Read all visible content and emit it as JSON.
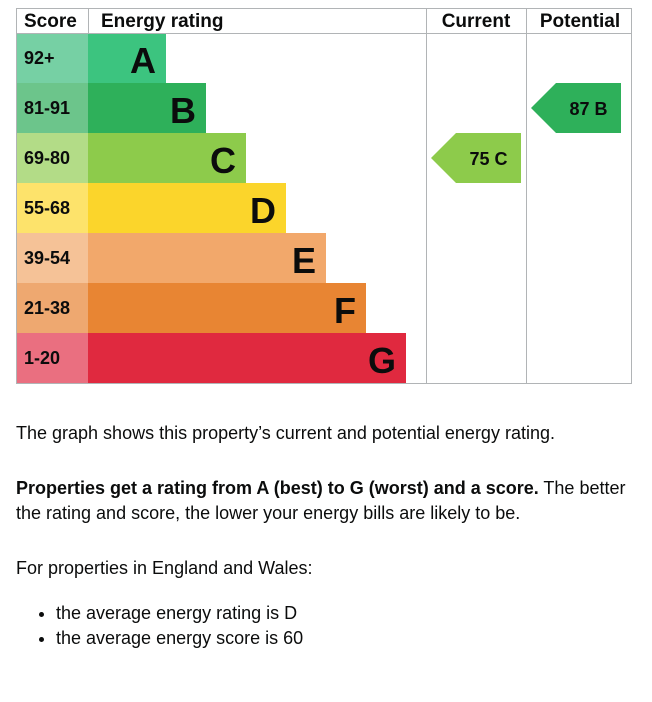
{
  "chart_data": {
    "type": "bar",
    "headers": {
      "score": "Score",
      "rating": "Energy rating",
      "current": "Current",
      "potential": "Potential"
    },
    "bands": [
      {
        "letter": "A",
        "range": "92+",
        "color": "#3cc47f",
        "score_color": "#76d0a4",
        "letter_color": "#0b0c0c"
      },
      {
        "letter": "B",
        "range": "81-91",
        "color": "#2eb05a",
        "score_color": "#6cc58b",
        "letter_color": "#0b0c0c"
      },
      {
        "letter": "C",
        "range": "69-80",
        "color": "#8dcb4b",
        "score_color": "#b3dc87",
        "letter_color": "#0b0c0c"
      },
      {
        "letter": "D",
        "range": "55-68",
        "color": "#fbd52b",
        "score_color": "#fde36b",
        "letter_color": "#0b0c0c"
      },
      {
        "letter": "E",
        "range": "39-54",
        "color": "#f2a86b",
        "score_color": "#f5c297",
        "letter_color": "#0b0c0c"
      },
      {
        "letter": "F",
        "range": "21-38",
        "color": "#e88533",
        "score_color": "#eea870",
        "letter_color": "#0b0c0c"
      },
      {
        "letter": "G",
        "range": "1-20",
        "color": "#e0293f",
        "score_color": "#ea6f80",
        "letter_color": "#0b0c0c"
      }
    ],
    "current": {
      "score": 75,
      "band": "C",
      "label": "75 C",
      "color": "#8dcb4b"
    },
    "potential": {
      "score": 87,
      "band": "B",
      "label": "87 B",
      "color": "#2eb05a"
    }
  },
  "text": {
    "p1": "The graph shows this property’s current and potential energy rating.",
    "p2_bold": "Properties get a rating from A (best) to G (worst) and a score.",
    "p2_rest": " The better the rating and score, the lower your energy bills are likely to be.",
    "p3": "For properties in England and Wales:",
    "bullet1": "the average energy rating is D",
    "bullet2": "the average energy score is 60"
  }
}
